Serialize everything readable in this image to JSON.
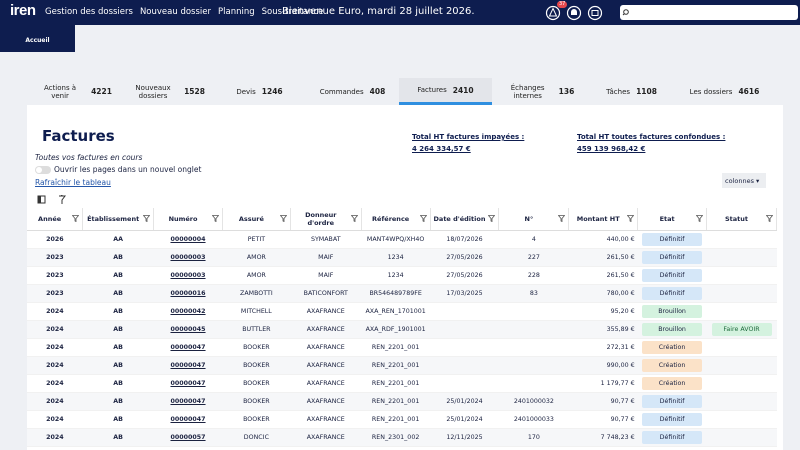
{
  "nav": {
    "logo": "iren",
    "menu": [
      "Gestion des dossiers",
      "Nouveau dossier",
      "Planning",
      "Sous-traitance"
    ],
    "welcome": "Bienvenue Euro, mardi 28 juillet 2026.",
    "badge": "37",
    "active_tab": "Accueil"
  },
  "tabs": [
    {
      "label": "Actions à venir",
      "count": 4221
    },
    {
      "label": "Nouveaux dossiers",
      "count": 1528
    },
    {
      "label": "Devis",
      "count": 1246
    },
    {
      "label": "Commandes",
      "count": 408
    },
    {
      "label": "Factures",
      "count": 2410,
      "active": true
    },
    {
      "label": "Échanges internes",
      "count": 136
    },
    {
      "label": "Tâches",
      "count": 1108
    },
    {
      "label": "Les dossiers",
      "count": 4616
    }
  ],
  "page": {
    "title": "Factures",
    "subtitle": "Toutes vos factures en cours",
    "toggle": "Ouvrir les pages dans un nouvel onglet",
    "refresh": "Rafraîchir le tableau",
    "columns_button": "colonnes",
    "totals": [
      {
        "label": "Total HT factures impayées :",
        "value": "4 264 334,57 €"
      },
      {
        "label": "Total HT toutes factures confondues :",
        "value": "459 139 968,42 €"
      }
    ]
  },
  "table": {
    "columns": [
      "Année",
      "Établissement",
      "Numéro",
      "Assuré",
      "Donneur d'ordre",
      "Référence",
      "Date d'édition",
      "N°",
      "Montant HT",
      "Etat",
      "Statut"
    ],
    "rows": [
      {
        "annee": "2026",
        "etab": "AA",
        "numero": "00000004",
        "assure": "PETIT",
        "donneur": "SYMABAT",
        "reference": "MANT4WPQ/XH4O",
        "date": "18/07/2026",
        "no": "4",
        "montant": "440,00 €",
        "etat": "Définitif",
        "etat_color": "#d5e7f8"
      },
      {
        "annee": "2023",
        "etab": "AB",
        "numero": "00000003",
        "assure": "AMOR",
        "donneur": "MAIF",
        "reference": "1234",
        "date": "27/05/2026",
        "no": "227",
        "montant": "261,50 €",
        "etat": "Définitif",
        "etat_color": "#d5e7f8"
      },
      {
        "annee": "2023",
        "etab": "AB",
        "numero": "00000003",
        "assure": "AMOR",
        "donneur": "MAIF",
        "reference": "1234",
        "date": "27/05/2026",
        "no": "228",
        "montant": "261,50 €",
        "etat": "Définitif",
        "etat_color": "#d5e7f8"
      },
      {
        "annee": "2023",
        "etab": "AB",
        "numero": "00000016",
        "assure": "ZAMBOTTI",
        "donneur": "BATICONFORT",
        "reference": "BR546489789FE",
        "date": "17/03/2025",
        "no": "83",
        "montant": "780,00 €",
        "etat": "Définitif",
        "etat_color": "#d5e7f8"
      },
      {
        "annee": "2024",
        "etab": "AB",
        "numero": "00000042",
        "assure": "MITCHELL",
        "donneur": "AXAFRANCE",
        "reference": "AXA_REN_1701001",
        "montant": "95,20 €",
        "etat": "Brouillon",
        "etat_color": "#d4f2df"
      },
      {
        "annee": "2024",
        "etab": "AB",
        "numero": "00000045",
        "assure": "BUTTLER",
        "donneur": "AXAFRANCE",
        "reference": "AXA_RDF_1901001",
        "montant": "355,89 €",
        "etat": "Brouillon",
        "etat_color": "#d4f2df",
        "statut": "Faire AVOIR"
      },
      {
        "annee": "2024",
        "etab": "AB",
        "numero": "00000047",
        "assure": "BOOKER",
        "donneur": "AXAFRANCE",
        "reference": "REN_2201_001",
        "montant": "272,31 €",
        "etat": "Création",
        "etat_color": "#fbe2c8"
      },
      {
        "annee": "2024",
        "etab": "AB",
        "numero": "00000047",
        "assure": "BOOKER",
        "donneur": "AXAFRANCE",
        "reference": "REN_2201_001",
        "montant": "990,00 €",
        "etat": "Création",
        "etat_color": "#fbe2c8"
      },
      {
        "annee": "2024",
        "etab": "AB",
        "numero": "00000047",
        "assure": "BOOKER",
        "donneur": "AXAFRANCE",
        "reference": "REN_2201_001",
        "montant": "1 179,77 €",
        "etat": "Création",
        "etat_color": "#fbe2c8"
      },
      {
        "annee": "2024",
        "etab": "AB",
        "numero": "00000047",
        "assure": "BOOKER",
        "donneur": "AXAFRANCE",
        "reference": "REN_2201_001",
        "date": "25/01/2024",
        "no": "2401000032",
        "montant": "90,77 €",
        "etat": "Définitif",
        "etat_color": "#d5e7f8"
      },
      {
        "annee": "2024",
        "etab": "AB",
        "numero": "00000047",
        "assure": "BOOKER",
        "donneur": "AXAFRANCE",
        "reference": "REN_2201_001",
        "date": "25/01/2024",
        "no": "2401000033",
        "montant": "90,77 €",
        "etat": "Définitif",
        "etat_color": "#d5e7f8"
      },
      {
        "annee": "2024",
        "etab": "AB",
        "numero": "00000057",
        "assure": "DONCIC",
        "donneur": "AXAFRANCE",
        "reference": "REN_2301_002",
        "date": "12/11/2025",
        "no": "170",
        "montant": "7 748,23 €",
        "etat": "Définitif",
        "etat_color": "#d5e7f8"
      }
    ]
  }
}
